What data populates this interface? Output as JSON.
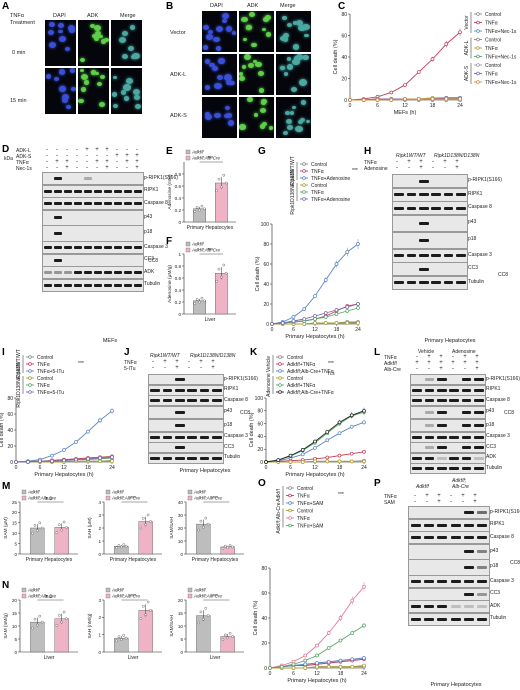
{
  "panels": {
    "A": "A",
    "B": "B",
    "C": "C",
    "D": "D",
    "E": "E",
    "F": "F",
    "G": "G",
    "H": "H",
    "I": "I",
    "J": "J",
    "K": "K",
    "L": "L",
    "M": "M",
    "N": "N",
    "O": "O",
    "P": "P"
  },
  "micrographs": {
    "A": {
      "treatment": "TNFα\nTreatment",
      "cols": [
        "DAPI",
        "ADK",
        "Merge"
      ],
      "rows": [
        "0 min",
        "15 min"
      ]
    },
    "B": {
      "cols": [
        "DAPI",
        "ADK",
        "Merge"
      ],
      "rows": [
        "Vector",
        "ADK-L",
        "ADK-S"
      ]
    }
  },
  "common": {
    "kDa": "kDa",
    "MEFs": "MEFs",
    "PH": "Primary Hepatocytes",
    "Liver": "Liver",
    "celldeath": "Cell death (%)",
    "mefs_h": "MEFs (h)",
    "ph_h": "Primary Hepatocytes (h)"
  },
  "blots": {
    "D": {
      "cond": [
        "ADK-L",
        "ADK-S",
        "TNFα",
        "Nec-1s"
      ],
      "rows": [
        "p-RIPK1(S166)",
        "RIPK1",
        "Caspase 8",
        "p43",
        "p18",
        "Caspase 3",
        "CC3",
        "ADK",
        "Tubulin"
      ],
      "cc8": "CC8",
      "kda": [
        "70",
        "55",
        "70",
        "55",
        "40",
        "25",
        "15",
        "35",
        "15",
        "35",
        "55"
      ],
      "footer": "MEFs"
    },
    "H": {
      "genotypes": [
        "Ripk1WT/WT",
        "Ripk1D138N/D138N"
      ],
      "cond": [
        "TNFα",
        "Adenosine"
      ],
      "rows": [
        "p-RIPK1(S166)",
        "RIPK1",
        "Caspase 8",
        "p43",
        "p18",
        "Caspase 3",
        "CC3",
        "Tubulin"
      ],
      "cc8": "CC8",
      "footer": "Primary Hepatocytes"
    },
    "J": {
      "genotypes": [
        "Ripk1WT/WT",
        "Ripk1D138N/D138N"
      ],
      "cond": [
        "TNFα",
        "5-ITu"
      ],
      "rows": [
        "p-RIPK1(S166)",
        "RIPK1",
        "Caspase 8",
        "p43",
        "p18",
        "Caspase 3",
        "CC3",
        "Tubulin"
      ],
      "cc8": "CC8",
      "footer": "Primary Hepatocytes"
    },
    "L": {
      "groups": [
        "Vehicle",
        "Adenosine"
      ],
      "cond": [
        "TNFα",
        "Adkf/f",
        "Alb-Cre"
      ],
      "rows": [
        "p-RIPK1(S166)",
        "RIPK1",
        "Caspase 8",
        "p43",
        "p18",
        "Caspase 3",
        "CC3",
        "ADK",
        "Tubulin"
      ],
      "cc8": "CC8",
      "footer": "Primary Hepatocytes"
    },
    "P": {
      "genotypes": [
        "Adkf/f",
        "Adkf/f;\nAlb-Cre"
      ],
      "cond": [
        "TNFα",
        "SAM"
      ],
      "rows": [
        "p-RIPK1(S166)",
        "RIPK1",
        "Caspase 8",
        "p43",
        "p18",
        "Caspase 3",
        "CC3",
        "ADK",
        "Tubulin"
      ],
      "cc8": "CC8",
      "footer": "Primary Hepatocytes"
    }
  },
  "chart_data": [
    {
      "id": "C",
      "type": "line",
      "xlabel": "MEFs (h)",
      "ylabel": "Cell death (%)",
      "x": [
        0,
        3,
        6,
        9,
        12,
        15,
        18,
        21,
        24
      ],
      "ylim": [
        0,
        80
      ],
      "yticks": [
        0,
        20,
        40,
        60,
        80
      ],
      "xticks": [
        0,
        6,
        12,
        18,
        24
      ],
      "series": [
        {
          "name": "Control",
          "group": "Vector",
          "color": "#888888",
          "values": [
            0,
            0,
            0,
            0,
            0,
            0,
            0,
            0,
            0
          ]
        },
        {
          "name": "TNFα",
          "group": "Vector",
          "color": "#c43c5a",
          "values": [
            0,
            1,
            3,
            7,
            14,
            26,
            38,
            52,
            63
          ]
        },
        {
          "name": "TNFα+Nec-1s",
          "group": "Vector",
          "color": "#5b86c4",
          "values": [
            0,
            0,
            1,
            1,
            1,
            1,
            1,
            2,
            2
          ]
        },
        {
          "name": "Control",
          "group": "ADK-L",
          "color": "#8a8a8a",
          "values": [
            0,
            0,
            0,
            0,
            0,
            0,
            0,
            0,
            0
          ]
        },
        {
          "name": "TNFα",
          "group": "ADK-L",
          "color": "#aaa230",
          "values": [
            0,
            0,
            1,
            1,
            1,
            1,
            2,
            2,
            2
          ]
        },
        {
          "name": "TNFα+Nec-1s",
          "group": "ADK-L",
          "color": "#55a866",
          "values": [
            0,
            0,
            0,
            1,
            1,
            1,
            1,
            1,
            1
          ]
        },
        {
          "name": "Control",
          "group": "ADK-S",
          "color": "#999999",
          "values": [
            0,
            0,
            0,
            0,
            0,
            0,
            0,
            0,
            0
          ]
        },
        {
          "name": "TNFα",
          "group": "ADK-S",
          "color": "#7a6cb0",
          "values": [
            0,
            0,
            1,
            1,
            1,
            1,
            1,
            2,
            2
          ]
        },
        {
          "name": "TNFα+Nec-1s",
          "group": "ADK-S",
          "color": "#d08a3a",
          "values": [
            0,
            0,
            0,
            0,
            1,
            1,
            1,
            1,
            1
          ]
        }
      ],
      "sig": "***"
    },
    {
      "id": "E",
      "type": "bar",
      "categories": [
        "Adkf/f",
        "Adkf/f;Alb-Cre"
      ],
      "values": [
        0.22,
        0.65
      ],
      "ylim": [
        0,
        1.0
      ],
      "yticks": [
        0,
        0.2,
        0.4,
        0.6,
        0.8
      ],
      "ylabel": "Adenosine (mM)",
      "xlabel": "Primary Hepatocytes",
      "colors": [
        "#bdbdbd",
        "#f0b3c5"
      ],
      "sig": "***"
    },
    {
      "id": "F",
      "type": "bar",
      "categories": [
        "Adkf/f",
        "Adkf/f;Alb-Cre"
      ],
      "values": [
        0.22,
        0.68
      ],
      "ylim": [
        0,
        1.0
      ],
      "yticks": [
        0,
        0.2,
        0.4,
        0.6,
        0.8,
        1.0
      ],
      "ylabel": "Adenosine (μM/g)",
      "xlabel": "Liver",
      "colors": [
        "#bdbdbd",
        "#f0b3c5"
      ],
      "sig": "***"
    },
    {
      "id": "G",
      "type": "line",
      "xlabel": "Primary Hepatocytes (h)",
      "ylabel": "Cell death (%)",
      "x": [
        0,
        3,
        6,
        9,
        12,
        15,
        18,
        21,
        24
      ],
      "ylim": [
        0,
        100
      ],
      "yticks": [
        0,
        20,
        40,
        60,
        80,
        100
      ],
      "xticks": [
        0,
        6,
        12,
        18,
        24
      ],
      "series": [
        {
          "name": "Control",
          "group": "Ripk1WT/WT",
          "color": "#888888",
          "values": [
            0,
            0,
            0,
            0,
            1,
            1,
            1,
            2,
            2
          ]
        },
        {
          "name": "TNFα",
          "group": "Ripk1WT/WT",
          "color": "#c43c5a",
          "values": [
            0,
            1,
            2,
            3,
            5,
            8,
            13,
            18,
            20
          ]
        },
        {
          "name": "TNFα+Adenosine",
          "group": "Ripk1WT/WT",
          "color": "#5b86c4",
          "values": [
            0,
            2,
            7,
            15,
            28,
            44,
            60,
            72,
            80
          ]
        },
        {
          "name": "Control",
          "group": "Ripk1D138N/D138N",
          "color": "#aaa230",
          "values": [
            0,
            0,
            0,
            0,
            1,
            1,
            1,
            1,
            1
          ]
        },
        {
          "name": "TNFα",
          "group": "Ripk1D138N/D138N",
          "color": "#55a866",
          "values": [
            0,
            1,
            2,
            3,
            5,
            7,
            10,
            13,
            16
          ]
        },
        {
          "name": "TNFα+Adenosine",
          "group": "Ripk1D138N/D138N",
          "color": "#7a6cb0",
          "values": [
            0,
            1,
            3,
            5,
            8,
            11,
            14,
            17,
            20
          ]
        }
      ],
      "sig": "***"
    },
    {
      "id": "I",
      "type": "line",
      "xlabel": "Primary Hepatocytes (h)",
      "ylabel": "Cell death (%)",
      "x": [
        0,
        3,
        6,
        9,
        12,
        15,
        18,
        21,
        24
      ],
      "ylim": [
        0,
        80
      ],
      "yticks": [
        0,
        20,
        40,
        60,
        80
      ],
      "xticks": [
        0,
        6,
        12,
        18,
        24
      ],
      "series": [
        {
          "name": "Control",
          "group": "Ripk1WT/WT",
          "color": "#888888",
          "values": [
            0,
            0,
            0,
            0,
            1,
            1,
            1,
            1,
            2
          ]
        },
        {
          "name": "TNFα",
          "group": "Ripk1WT/WT",
          "color": "#c43c5a",
          "values": [
            0,
            1,
            1,
            2,
            3,
            4,
            5,
            6,
            7
          ]
        },
        {
          "name": "TNFα+5-ITu",
          "group": "Ripk1WT/WT",
          "color": "#5b86c4",
          "values": [
            0,
            1,
            3,
            8,
            15,
            25,
            38,
            52,
            64
          ]
        },
        {
          "name": "Control",
          "group": "Ripk1D138N/D138N",
          "color": "#aaa230",
          "values": [
            0,
            0,
            0,
            0,
            0,
            1,
            1,
            1,
            1
          ]
        },
        {
          "name": "TNFα",
          "group": "Ripk1D138N/D138N",
          "color": "#55a866",
          "values": [
            0,
            0,
            1,
            1,
            2,
            3,
            3,
            4,
            5
          ]
        },
        {
          "name": "TNFα+5-ITu",
          "group": "Ripk1D138N/D138N",
          "color": "#7a6cb0",
          "values": [
            0,
            0,
            1,
            1,
            2,
            3,
            4,
            5,
            6
          ]
        }
      ],
      "sig": "***"
    },
    {
      "id": "K",
      "type": "line",
      "xlabel": "Primary Hepatocytes (h)",
      "ylabel": "Cell death (%)",
      "x": [
        0,
        3,
        6,
        9,
        12,
        15,
        18,
        21,
        24
      ],
      "ylim": [
        0,
        100
      ],
      "yticks": [
        0,
        20,
        40,
        60,
        80,
        100
      ],
      "xticks": [
        0,
        6,
        12,
        18,
        24
      ],
      "series": [
        {
          "name": "Control",
          "group": "Vehicle",
          "color": "#888888",
          "values": [
            0,
            0,
            0,
            0,
            1,
            1,
            1,
            1,
            2
          ]
        },
        {
          "name": "Adkf/f+TNFα",
          "group": "Vehicle",
          "color": "#c43c5a",
          "values": [
            0,
            1,
            2,
            3,
            5,
            7,
            10,
            13,
            16
          ]
        },
        {
          "name": "Adkf/f;Alb-Cre+TNFα",
          "group": "Vehicle",
          "color": "#5b86c4",
          "values": [
            0,
            2,
            6,
            12,
            22,
            34,
            45,
            55,
            62
          ]
        },
        {
          "name": "Control",
          "group": "Adenosine",
          "color": "#aaa230",
          "values": [
            0,
            0,
            0,
            0,
            1,
            1,
            1,
            1,
            1
          ]
        },
        {
          "name": "Adkf/f+TNFα",
          "group": "Adenosine",
          "color": "#55a866",
          "values": [
            0,
            3,
            9,
            18,
            30,
            45,
            60,
            72,
            78
          ]
        },
        {
          "name": "Adkf/f;Alb-Cre+TNFα",
          "group": "Adenosine",
          "color": "#222222",
          "values": [
            0,
            3,
            10,
            19,
            32,
            47,
            62,
            73,
            80
          ]
        }
      ],
      "sig": [
        "***",
        "n.s"
      ]
    },
    {
      "id": "M1",
      "type": "bar",
      "categories": [
        "Adkf/f",
        "Adkf/f;Alb-Cre"
      ],
      "values": [
        12.5,
        12.8
      ],
      "ylim": [
        0,
        25
      ],
      "yticks": [
        0,
        5,
        10,
        15,
        20,
        25
      ],
      "ylabel": "SAM (μM)",
      "xlabel": "Primary Hepatocytes",
      "colors": [
        "#bdbdbd",
        "#f0b3c5"
      ],
      "sig": "n.s"
    },
    {
      "id": "M2",
      "type": "bar",
      "categories": [
        "Adkf/f",
        "Adkf/f;Alb-Cre"
      ],
      "values": [
        0.6,
        2.5
      ],
      "ylim": [
        0,
        4
      ],
      "yticks": [
        0,
        1,
        2,
        3,
        4
      ],
      "ylabel": "SAH (μM)",
      "xlabel": "Primary Hepatocytes",
      "colors": [
        "#bdbdbd",
        "#f0b3c5"
      ],
      "sig": "***"
    },
    {
      "id": "M3",
      "type": "bar",
      "categories": [
        "Adkf/f",
        "Adkf/f;Alb-Cre"
      ],
      "values": [
        23,
        5.5
      ],
      "ylim": [
        0,
        40
      ],
      "yticks": [
        0,
        10,
        20,
        30,
        40
      ],
      "ylabel": "SAM/SAH",
      "xlabel": "Primary Hepatocytes",
      "colors": [
        "#bdbdbd",
        "#f0b3c5"
      ],
      "sig": "***"
    },
    {
      "id": "N1",
      "type": "bar",
      "categories": [
        "Adkf/f",
        "Adkf/f;Alb-Cre"
      ],
      "values": [
        11.5,
        12.8
      ],
      "ylim": [
        0,
        20
      ],
      "yticks": [
        0,
        5,
        10,
        15,
        20
      ],
      "ylabel": "SAM (nM/g)",
      "xlabel": "Liver",
      "colors": [
        "#bdbdbd",
        "#f0b3c5"
      ],
      "sig": "n.s"
    },
    {
      "id": "N2",
      "type": "bar",
      "categories": [
        "Adkf/f",
        "Adkf/f;Alb-Cre"
      ],
      "values": [
        0.8,
        2.4
      ],
      "ylim": [
        0,
        3
      ],
      "yticks": [
        0,
        1,
        2,
        3
      ],
      "ylabel": "SAH (nM/g)",
      "xlabel": "Liver",
      "colors": [
        "#bdbdbd",
        "#f0b3c5"
      ],
      "sig": "***"
    },
    {
      "id": "N3",
      "type": "bar",
      "categories": [
        "Adkf/f",
        "Adkf/f;Alb-Cre"
      ],
      "values": [
        14,
        6
      ],
      "ylim": [
        0,
        20
      ],
      "yticks": [
        0,
        5,
        10,
        15,
        20
      ],
      "ylabel": "SAM/SAH",
      "xlabel": "Liver",
      "colors": [
        "#bdbdbd",
        "#f0b3c5"
      ],
      "sig": "***"
    },
    {
      "id": "O",
      "type": "line",
      "xlabel": "Primary Hepatocytes (h)",
      "ylabel": "Cell death (%)",
      "x": [
        0,
        3,
        6,
        9,
        12,
        15,
        18,
        21,
        24
      ],
      "ylim": [
        0,
        80
      ],
      "yticks": [
        0,
        20,
        40,
        60,
        80
      ],
      "xticks": [
        0,
        6,
        12,
        18,
        24
      ],
      "series": [
        {
          "name": "Control",
          "group": "Adkf/f",
          "color": "#888888",
          "values": [
            0,
            0,
            0,
            0,
            1,
            1,
            1,
            1,
            1
          ]
        },
        {
          "name": "TNFα",
          "group": "Adkf/f",
          "color": "#c43c5a",
          "values": [
            0,
            1,
            2,
            2,
            3,
            4,
            5,
            6,
            7
          ]
        },
        {
          "name": "TNFα+SAM",
          "group": "Adkf/f",
          "color": "#5b86c4",
          "values": [
            0,
            1,
            2,
            3,
            4,
            5,
            6,
            7,
            8
          ]
        },
        {
          "name": "Control",
          "group": "Adkf/f;Alb-Cre",
          "color": "#aaa230",
          "values": [
            0,
            0,
            0,
            0,
            1,
            1,
            1,
            1,
            2
          ]
        },
        {
          "name": "TNFα",
          "group": "Adkf/f;Alb-Cre",
          "color": "#e07a9a",
          "values": [
            0,
            2,
            5,
            10,
            18,
            28,
            40,
            54,
            65
          ]
        },
        {
          "name": "TNFα+SAM",
          "group": "Adkf/f;Alb-Cre",
          "color": "#55a866",
          "values": [
            0,
            1,
            3,
            6,
            10,
            16,
            22,
            28,
            34
          ]
        }
      ],
      "sig": "***"
    }
  ]
}
